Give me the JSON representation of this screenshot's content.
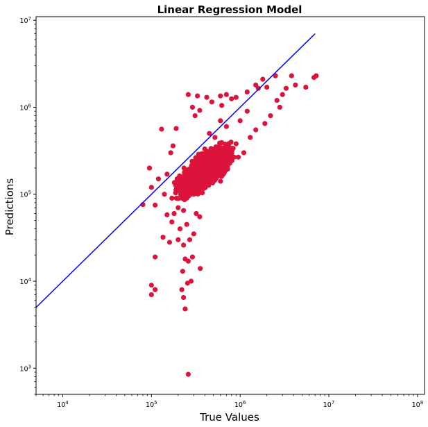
{
  "chart_data": {
    "type": "scatter",
    "title": "Linear Regression Model",
    "xlabel": "True Values",
    "ylabel": "Predictions",
    "xscale": "log",
    "yscale": "log",
    "xlim": [
      5000,
      120000000
    ],
    "ylim": [
      500,
      11000000
    ],
    "x_ticks": [
      {
        "value": 10000,
        "base": "10",
        "exp": "4"
      },
      {
        "value": 100000,
        "base": "10",
        "exp": "5"
      },
      {
        "value": 1000000,
        "base": "10",
        "exp": "6"
      },
      {
        "value": 10000000,
        "base": "10",
        "exp": "7"
      },
      {
        "value": 100000000,
        "base": "10",
        "exp": "8"
      }
    ],
    "y_ticks": [
      {
        "value": 1000,
        "base": "10",
        "exp": "3"
      },
      {
        "value": 10000,
        "base": "10",
        "exp": "4"
      },
      {
        "value": 100000,
        "base": "10",
        "exp": "5"
      },
      {
        "value": 1000000,
        "base": "10",
        "exp": "6"
      },
      {
        "value": 10000000,
        "base": "10",
        "exp": "7"
      }
    ],
    "grid": false,
    "legend": "none",
    "series": [
      {
        "kind": "scatter",
        "color": "#DC143C",
        "points": [
          [
            100000,
            7000
          ],
          [
            110000,
            8000
          ],
          [
            100000,
            9000
          ],
          [
            260000,
            850
          ],
          [
            220000,
            8000
          ],
          [
            240000,
            4800
          ],
          [
            230000,
            6500
          ],
          [
            255000,
            9500
          ],
          [
            225000,
            13000
          ],
          [
            280000,
            10000
          ],
          [
            355000,
            14000
          ],
          [
            110000,
            19000
          ],
          [
            240000,
            18000
          ],
          [
            290000,
            19000
          ],
          [
            260000,
            17000
          ],
          [
            230000,
            26000
          ],
          [
            270000,
            30000
          ],
          [
            300000,
            35000
          ],
          [
            135000,
            32000
          ],
          [
            160000,
            28000
          ],
          [
            200000,
            30000
          ],
          [
            210000,
            40000
          ],
          [
            150000,
            58000
          ],
          [
            170000,
            48000
          ],
          [
            250000,
            45000
          ],
          [
            320000,
            60000
          ],
          [
            350000,
            55000
          ],
          [
            110000,
            75000
          ],
          [
            80000,
            76000
          ],
          [
            100000,
            120000
          ],
          [
            95000,
            200000
          ],
          [
            140000,
            100000
          ],
          [
            170000,
            90000
          ],
          [
            130000,
            560000
          ],
          [
            190000,
            570000
          ],
          [
            175000,
            360000
          ],
          [
            165000,
            300000
          ],
          [
            120000,
            150000
          ],
          [
            150000,
            170000
          ],
          [
            450000,
            500000
          ],
          [
            260000,
            1400000
          ],
          [
            290000,
            1000000
          ],
          [
            330000,
            1350000
          ],
          [
            310000,
            800000
          ],
          [
            350000,
            920000
          ],
          [
            420000,
            1300000
          ],
          [
            480000,
            1150000
          ],
          [
            600000,
            1350000
          ],
          [
            620000,
            1050000
          ],
          [
            700000,
            1400000
          ],
          [
            800000,
            1250000
          ],
          [
            900000,
            1300000
          ],
          [
            1200000,
            1500000
          ],
          [
            1500000,
            1800000
          ],
          [
            1800000,
            2100000
          ],
          [
            1600000,
            1650000
          ],
          [
            2000000,
            1700000
          ],
          [
            2500000,
            2300000
          ],
          [
            3300000,
            1650000
          ],
          [
            3800000,
            2300000
          ],
          [
            4200000,
            1800000
          ],
          [
            5500000,
            1700000
          ],
          [
            6800000,
            2200000
          ],
          [
            7200000,
            2300000
          ],
          [
            3000000,
            1400000
          ],
          [
            2600000,
            1200000
          ],
          [
            2800000,
            1000000
          ],
          [
            2200000,
            800000
          ],
          [
            1900000,
            650000
          ],
          [
            1500000,
            550000
          ],
          [
            1300000,
            450000
          ],
          [
            900000,
            380000
          ],
          [
            800000,
            250000
          ],
          [
            1100000,
            300000
          ],
          [
            650000,
            220000
          ],
          [
            500000,
            250000
          ],
          [
            550000,
            180000
          ],
          [
            400000,
            150000
          ],
          [
            350000,
            120000
          ],
          [
            300000,
            100000
          ],
          [
            250000,
            90000
          ],
          [
            220000,
            110000
          ],
          [
            200000,
            70000
          ],
          [
            180000,
            60000
          ],
          [
            230000,
            65000
          ],
          [
            1000000,
            700000
          ],
          [
            1200000,
            900000
          ],
          [
            700000,
            600000
          ],
          [
            600000,
            700000
          ],
          [
            520000,
            450000
          ]
        ]
      },
      {
        "kind": "line",
        "color": "#0000FF",
        "points": [
          [
            5000,
            5000
          ],
          [
            7000000,
            7000000
          ]
        ]
      }
    ]
  }
}
